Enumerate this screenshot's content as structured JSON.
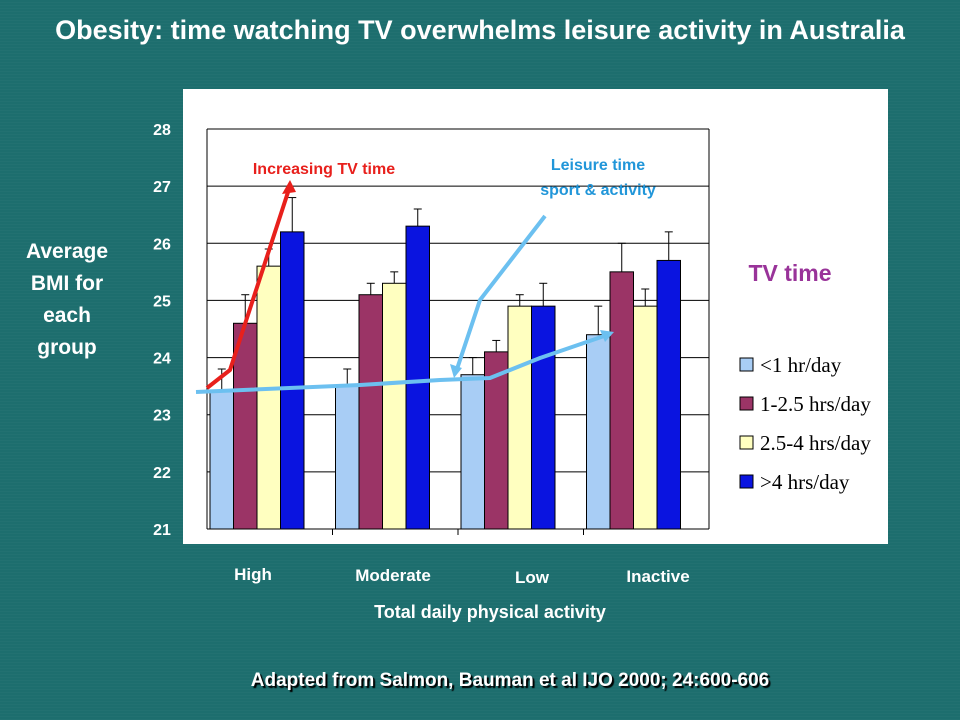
{
  "title": "Obesity: time watching TV overwhelms leisure activity in Australia",
  "source": "Adapted from Salmon, Bauman et al  IJO 2000; 24:600-606",
  "colors": {
    "background": "#1d6e6e",
    "series": [
      "#a8cdf5",
      "#9b3466",
      "#ffffc0",
      "#0a14e0"
    ],
    "tv_trend": "#e8201c",
    "activity_trend": "#6cc0f0",
    "tv_label": "#993399"
  },
  "chart_data": {
    "type": "bar",
    "title": "Obesity: time watching TV overwhelms leisure activity in Australia",
    "xlabel": "Total daily physical activity",
    "ylabel": "Average BMI for each group",
    "ylim": [
      21,
      28
    ],
    "yticks": [
      21,
      22,
      23,
      24,
      25,
      26,
      27,
      28
    ],
    "categories": [
      "High",
      "Moderate",
      "Low",
      "Inactive"
    ],
    "legend_title": "TV time",
    "legend_position": "right",
    "grid": "horizontal",
    "series": [
      {
        "name": "<1 hr/day",
        "values": [
          23.4,
          23.5,
          23.7,
          24.4
        ],
        "err": [
          0.4,
          0.3,
          0.3,
          0.5
        ]
      },
      {
        "name": "1-2.5 hrs/day",
        "values": [
          24.6,
          25.1,
          24.1,
          25.5
        ],
        "err": [
          0.5,
          0.2,
          0.2,
          0.5
        ]
      },
      {
        "name": "2.5-4 hrs/day",
        "values": [
          25.6,
          25.3,
          24.9,
          24.9
        ],
        "err": [
          0.3,
          0.2,
          0.2,
          0.3
        ]
      },
      {
        "name": ">4 hrs/day",
        "values": [
          26.2,
          26.3,
          24.9,
          25.7
        ],
        "err": [
          0.6,
          0.3,
          0.4,
          0.5
        ]
      }
    ],
    "annotations": [
      {
        "text": "Increasing TV time",
        "color": "#e8201c"
      },
      {
        "text": "Leisure time sport & activity",
        "color": "#2196d9"
      }
    ]
  }
}
